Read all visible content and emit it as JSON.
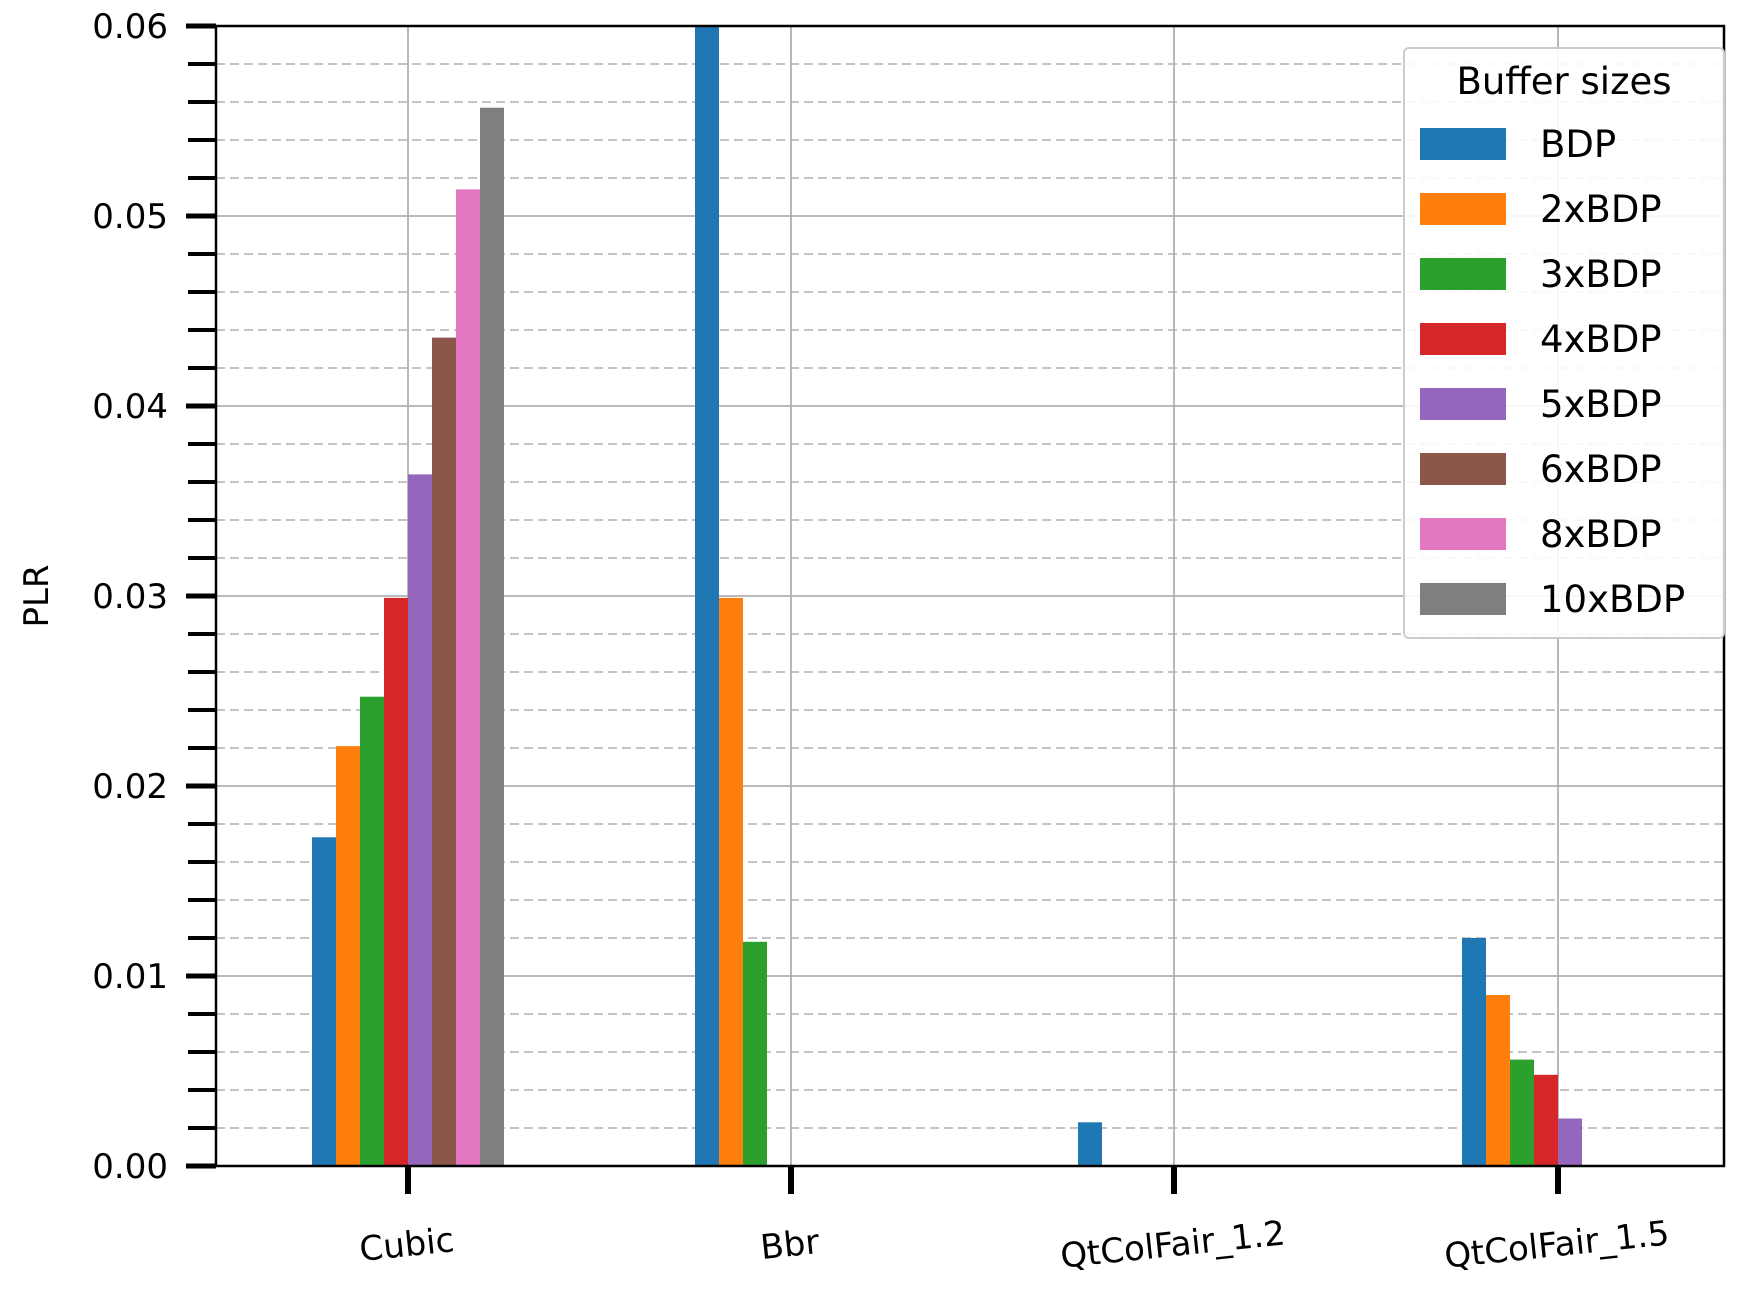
{
  "chart_data": {
    "type": "bar",
    "xlabel": "",
    "ylabel": "PLR",
    "ylim": [
      0,
      0.06
    ],
    "yticks": [
      "0.00",
      "0.01",
      "0.02",
      "0.03",
      "0.04",
      "0.05",
      "0.06"
    ],
    "categories": [
      "Cubic",
      "Bbr",
      "QtColFair_1.2",
      "QtColFair_1.5"
    ],
    "grid": "on (major solid, minor dashed)",
    "legend": {
      "title": "Buffer sizes",
      "placement": "top-right"
    },
    "series": [
      {
        "name": "BDP",
        "color": "#1f77b4",
        "values": [
          0.0173,
          0.06,
          0.0023,
          0.012
        ]
      },
      {
        "name": "2xBDP",
        "color": "#ff7f0e",
        "values": [
          0.0221,
          0.0299,
          0,
          0.009
        ]
      },
      {
        "name": "3xBDP",
        "color": "#2ca02c",
        "values": [
          0.0247,
          0.0118,
          0,
          0.0056
        ]
      },
      {
        "name": "4xBDP",
        "color": "#d62728",
        "values": [
          0.0299,
          0,
          0,
          0.0048
        ]
      },
      {
        "name": "5xBDP",
        "color": "#9467bd",
        "values": [
          0.0364,
          0,
          0,
          0.0025
        ]
      },
      {
        "name": "6xBDP",
        "color": "#8c564b",
        "values": [
          0.0436,
          0,
          0,
          0
        ]
      },
      {
        "name": "8xBDP",
        "color": "#e377c2",
        "values": [
          0.0514,
          0,
          0,
          0
        ]
      },
      {
        "name": "10xBDP",
        "color": "#7f7f7f",
        "values": [
          0.0557,
          0,
          0,
          0
        ]
      }
    ]
  }
}
